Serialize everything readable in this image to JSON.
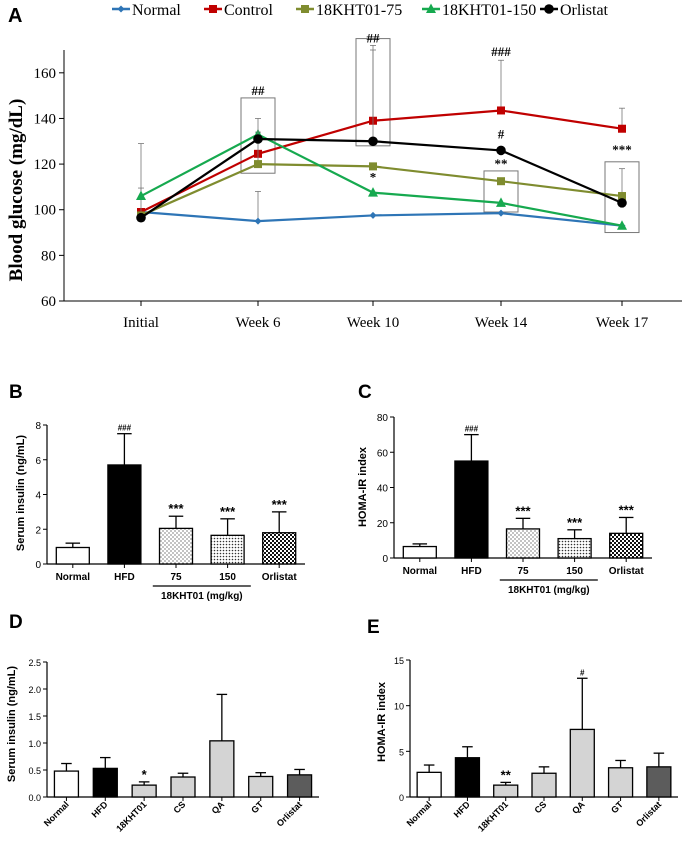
{
  "chart_data": [
    {
      "panel": "A",
      "type": "line",
      "title": "",
      "xlabel": "",
      "ylabel": "Blood glucose (mg/dL)",
      "ylim": [
        60,
        170
      ],
      "yticks": [
        60,
        80,
        100,
        120,
        140,
        160
      ],
      "categories": [
        "Initial",
        "Week 6",
        "Week 10",
        "Week 14",
        "Week 17"
      ],
      "series": [
        {
          "name": "Normal",
          "color": "#2e75b6",
          "marker": "diamond",
          "values": [
            99,
            95,
            97.5,
            98.5,
            93
          ],
          "errors": [
            0,
            13,
            0,
            0,
            0
          ]
        },
        {
          "name": "Control",
          "color": "#c00000",
          "marker": "square",
          "values": [
            99,
            124.5,
            139,
            143.5,
            135.5
          ],
          "errors": [
            0,
            0,
            33,
            22,
            9
          ]
        },
        {
          "name": "18KHT01-75",
          "color": "#7f8c2f",
          "marker": "square",
          "values": [
            97.5,
            120,
            119,
            112.5,
            106
          ],
          "errors": [
            12,
            14,
            0,
            0,
            12
          ]
        },
        {
          "name": "18KHT01-150",
          "color": "#16a94f",
          "marker": "triangle",
          "values": [
            106,
            133,
            107.5,
            103,
            93
          ],
          "errors": [
            23,
            0,
            0,
            0,
            0
          ]
        },
        {
          "name": "Orlistat",
          "color": "#000000",
          "marker": "circle",
          "values": [
            96.5,
            131,
            130,
            126,
            103
          ],
          "errors": [
            0,
            9,
            40,
            0,
            0
          ]
        }
      ],
      "annotations": [
        {
          "text": "##",
          "category": "Week 6",
          "y": 149
        },
        {
          "text": "##",
          "category": "Week 10",
          "y": 172
        },
        {
          "text": "*",
          "category": "Week 10",
          "y": 111
        },
        {
          "text": "###",
          "category": "Week 14",
          "y": 166
        },
        {
          "text": "#",
          "category": "Week 14",
          "y": 130
        },
        {
          "text": "**",
          "category": "Week 14",
          "y": 117
        },
        {
          "text": "***",
          "category": "Week 17",
          "y": 123
        }
      ],
      "boxes": [
        {
          "category": "Week 6",
          "ymin": 116,
          "ymax": 149
        },
        {
          "category": "Week 10",
          "ymin": 128,
          "ymax": 175
        },
        {
          "category": "Week 14",
          "ymin": 99,
          "ymax": 117
        },
        {
          "category": "Week 17",
          "ymin": 90,
          "ymax": 121
        }
      ]
    },
    {
      "panel": "B",
      "type": "bar",
      "ylabel": "Serum insulin (ng/mL)",
      "ylim": [
        0,
        8
      ],
      "yticks": [
        0,
        2,
        4,
        6,
        8
      ],
      "categories": [
        "Normal",
        "HFD",
        "75",
        "150",
        "Orlistat"
      ],
      "group_label": "18KHT01 (mg/kg)",
      "values": [
        0.95,
        5.7,
        2.05,
        1.65,
        1.8
      ],
      "errors": [
        0.25,
        1.8,
        0.7,
        0.95,
        1.2
      ],
      "annotations": [
        "",
        "###",
        "***",
        "***",
        "***"
      ]
    },
    {
      "panel": "C",
      "type": "bar",
      "ylabel": "HOMA-IR index",
      "ylim": [
        0,
        80
      ],
      "yticks": [
        0,
        20,
        40,
        60,
        80
      ],
      "categories": [
        "Normal",
        "HFD",
        "75",
        "150",
        "Orlistat"
      ],
      "group_label": "18KHT01 (mg/kg)",
      "values": [
        6.5,
        55,
        16.5,
        11,
        14
      ],
      "errors": [
        1.5,
        15,
        6,
        5,
        9
      ],
      "annotations": [
        "",
        "###",
        "***",
        "***",
        "***"
      ]
    },
    {
      "panel": "D",
      "type": "bar",
      "ylabel": "Serum insulin (ng/mL)",
      "ylim": [
        0,
        2.5
      ],
      "yticks": [
        "0.0",
        "0.5",
        "1.0",
        "1.5",
        "2.0",
        "2.5"
      ],
      "categories": [
        "Normal",
        "HFD",
        "18KHT01",
        "CS",
        "QA",
        "GT",
        "Orlistat"
      ],
      "values": [
        0.48,
        0.53,
        0.22,
        0.37,
        1.04,
        0.38,
        0.41
      ],
      "errors": [
        0.14,
        0.2,
        0.06,
        0.07,
        0.86,
        0.07,
        0.1
      ],
      "annotations": [
        "",
        "",
        "*",
        "",
        "",
        "",
        ""
      ]
    },
    {
      "panel": "E",
      "type": "bar",
      "ylabel": "HOMA-IR index",
      "ylim": [
        0,
        15
      ],
      "yticks": [
        0,
        5,
        10,
        15
      ],
      "categories": [
        "Normal",
        "HFD",
        "18KHT01",
        "CS",
        "QA",
        "GT",
        "Orlistat"
      ],
      "values": [
        2.7,
        4.3,
        1.3,
        2.6,
        7.4,
        3.2,
        3.3
      ],
      "errors": [
        0.8,
        1.2,
        0.3,
        0.7,
        5.6,
        0.8,
        1.5
      ],
      "annotations": [
        "",
        "",
        "**",
        "",
        "#",
        "",
        ""
      ]
    }
  ]
}
